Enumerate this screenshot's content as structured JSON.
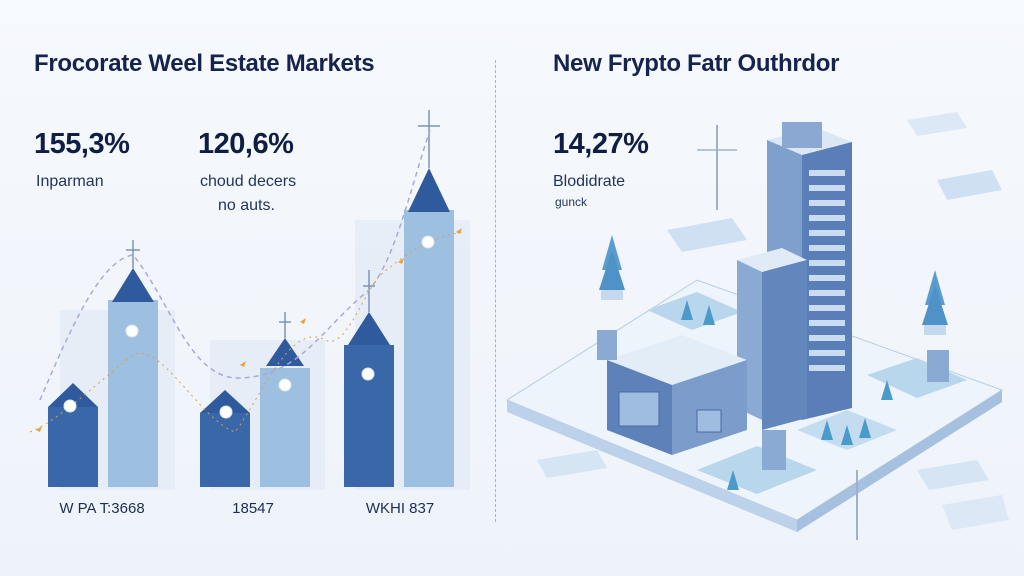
{
  "left_panel": {
    "title": "Frocorate Weel Estate Markets",
    "stats": [
      {
        "value": "155,3%",
        "caption": [
          "Inparman"
        ]
      },
      {
        "value": "120,6%",
        "caption": [
          "choud decers",
          "no auts."
        ]
      }
    ],
    "bar_labels": [
      "W PA T:3668",
      "18547",
      "WKHI 837"
    ]
  },
  "right_panel": {
    "title": "New Frypto Fatr Outhrdor",
    "stat": {
      "value": "14,27%",
      "caption": [
        "Blodidrate",
        "gunck"
      ]
    }
  },
  "colors": {
    "dark_blue": "#3a67a8",
    "light_blue": "#9dbfe0",
    "accent": "#e8a040",
    "text": "#16244d"
  }
}
